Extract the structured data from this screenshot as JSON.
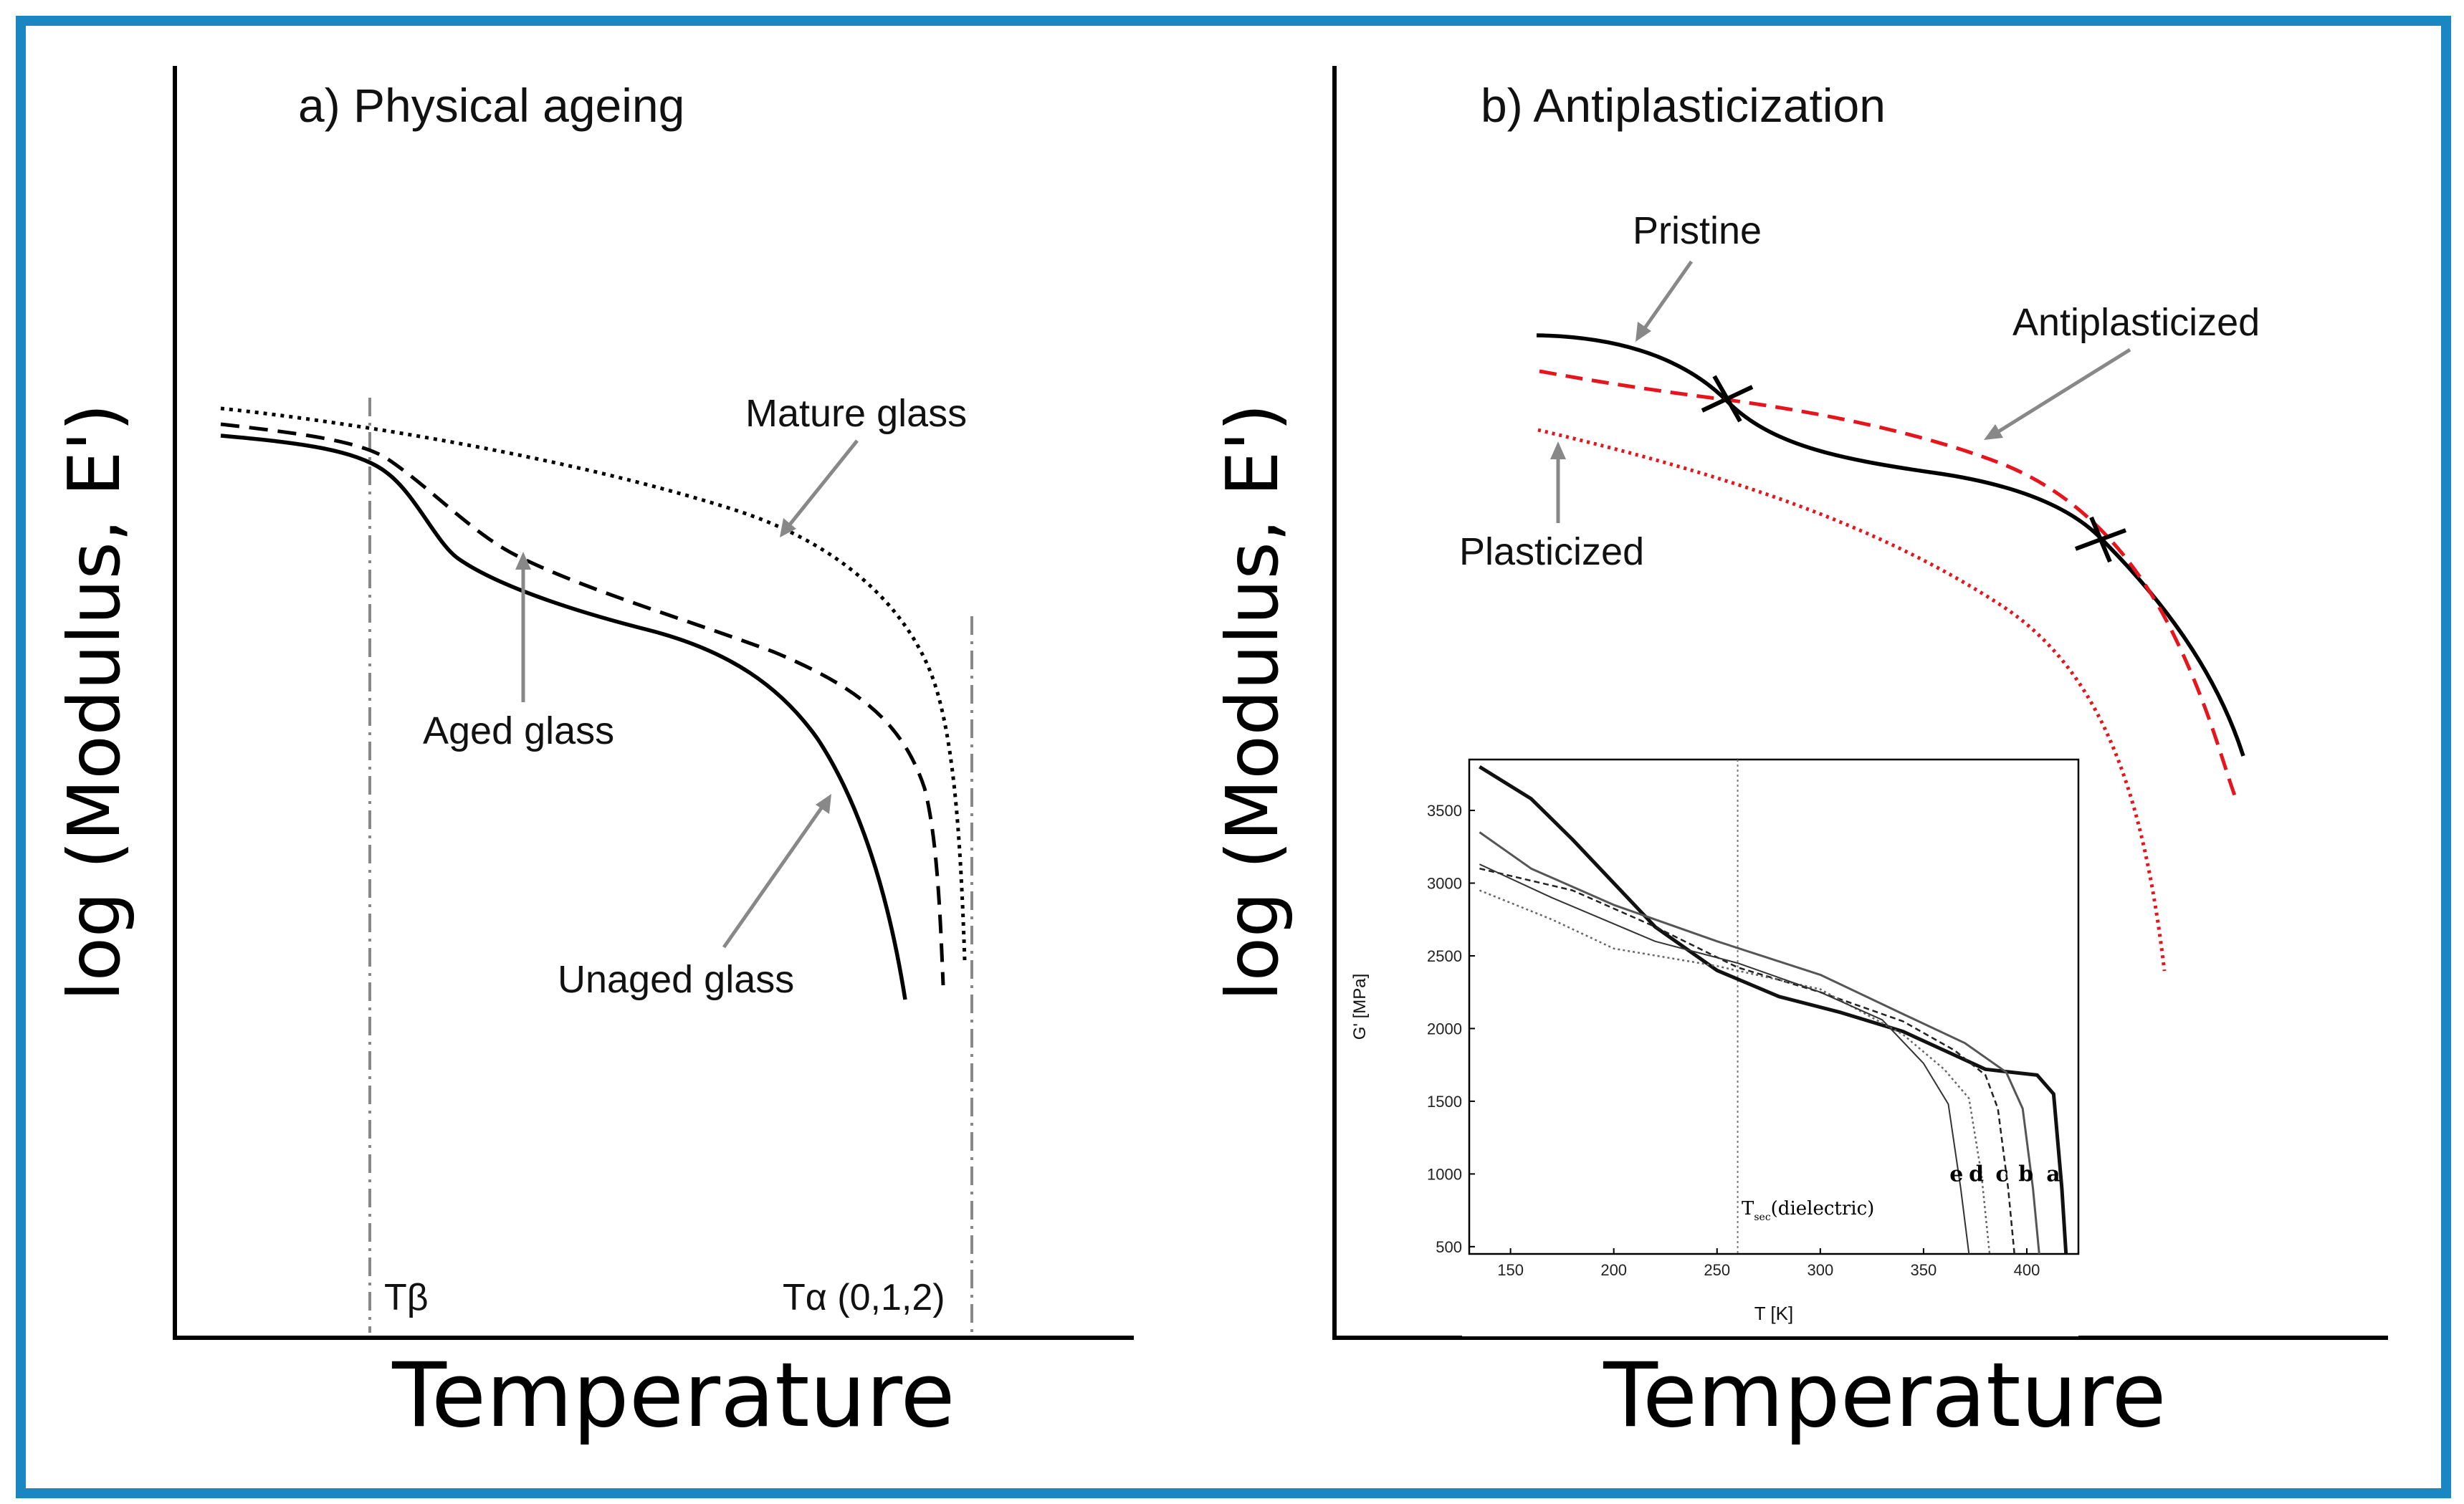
{
  "chart_data": [
    {
      "type": "line",
      "schematic": true,
      "title": "a) Physical ageing",
      "xlabel": "Temperature",
      "ylabel": "log (Modulus, E')",
      "axis_ticks": false,
      "reference_lines": [
        {
          "label": "Tβ",
          "style": "dash-dot"
        },
        {
          "label": "Tα (0,1,2)",
          "style": "dash-dot"
        }
      ],
      "series": [
        {
          "name": "Unaged glass",
          "style": "solid",
          "color": "#000000"
        },
        {
          "name": "Aged glass",
          "style": "dashed",
          "color": "#000000"
        },
        {
          "name": "Mature glass",
          "style": "dotted",
          "color": "#000000"
        }
      ],
      "annotations": [
        "Mature glass",
        "Aged glass",
        "Unaged glass"
      ]
    },
    {
      "type": "line",
      "schematic": true,
      "title": "b) Antiplasticization",
      "xlabel": "Temperature",
      "ylabel": "log (Modulus, E')",
      "axis_ticks": false,
      "series": [
        {
          "name": "Pristine",
          "style": "solid",
          "color": "#000000"
        },
        {
          "name": "Antiplasticized",
          "style": "dashed",
          "color": "#e8141c"
        },
        {
          "name": "Plasticized",
          "style": "dotted",
          "color": "#e8141c"
        }
      ],
      "annotations": [
        "Pristine",
        "Antiplasticized",
        "Plasticized"
      ],
      "crossover_markers": 2
    },
    {
      "type": "line",
      "inset": true,
      "xlabel": "T [K]",
      "ylabel": "G' [MPa]",
      "xlim": [
        130,
        425
      ],
      "ylim": [
        450,
        3850
      ],
      "x_ticks": [
        150,
        200,
        250,
        300,
        350,
        400
      ],
      "y_ticks": [
        500,
        1000,
        1500,
        2000,
        2500,
        3000,
        3500
      ],
      "reference_line": {
        "x": 260,
        "label_main": "T",
        "label_sub": "sec",
        "label_rest": "(dielectric)"
      },
      "series": [
        {
          "name": "a",
          "x": [
            135,
            160,
            180,
            200,
            220,
            250,
            280,
            310,
            340,
            360,
            380,
            405,
            413,
            417,
            419
          ],
          "y": [
            3800,
            3580,
            3300,
            3000,
            2700,
            2400,
            2220,
            2110,
            1980,
            1850,
            1720,
            1680,
            1550,
            900,
            450
          ]
        },
        {
          "name": "b",
          "x": [
            135,
            160,
            200,
            250,
            300,
            340,
            370,
            390,
            398,
            403,
            406
          ],
          "y": [
            3350,
            3100,
            2850,
            2600,
            2370,
            2100,
            1900,
            1700,
            1450,
            900,
            450
          ]
        },
        {
          "name": "c",
          "x": [
            135,
            180,
            220,
            260,
            300,
            340,
            365,
            380,
            386,
            391,
            394
          ],
          "y": [
            3100,
            2950,
            2700,
            2420,
            2250,
            2050,
            1850,
            1680,
            1450,
            900,
            450
          ]
        },
        {
          "name": "d",
          "x": [
            135,
            170,
            200,
            250,
            300,
            340,
            360,
            372,
            378,
            382
          ],
          "y": [
            2950,
            2750,
            2550,
            2430,
            2270,
            1960,
            1720,
            1520,
            1000,
            450
          ]
        },
        {
          "name": "e",
          "x": [
            135,
            170,
            220,
            260,
            300,
            330,
            350,
            362,
            368,
            372
          ],
          "y": [
            3130,
            2900,
            2600,
            2450,
            2250,
            2060,
            1760,
            1480,
            900,
            450
          ]
        }
      ]
    }
  ]
}
